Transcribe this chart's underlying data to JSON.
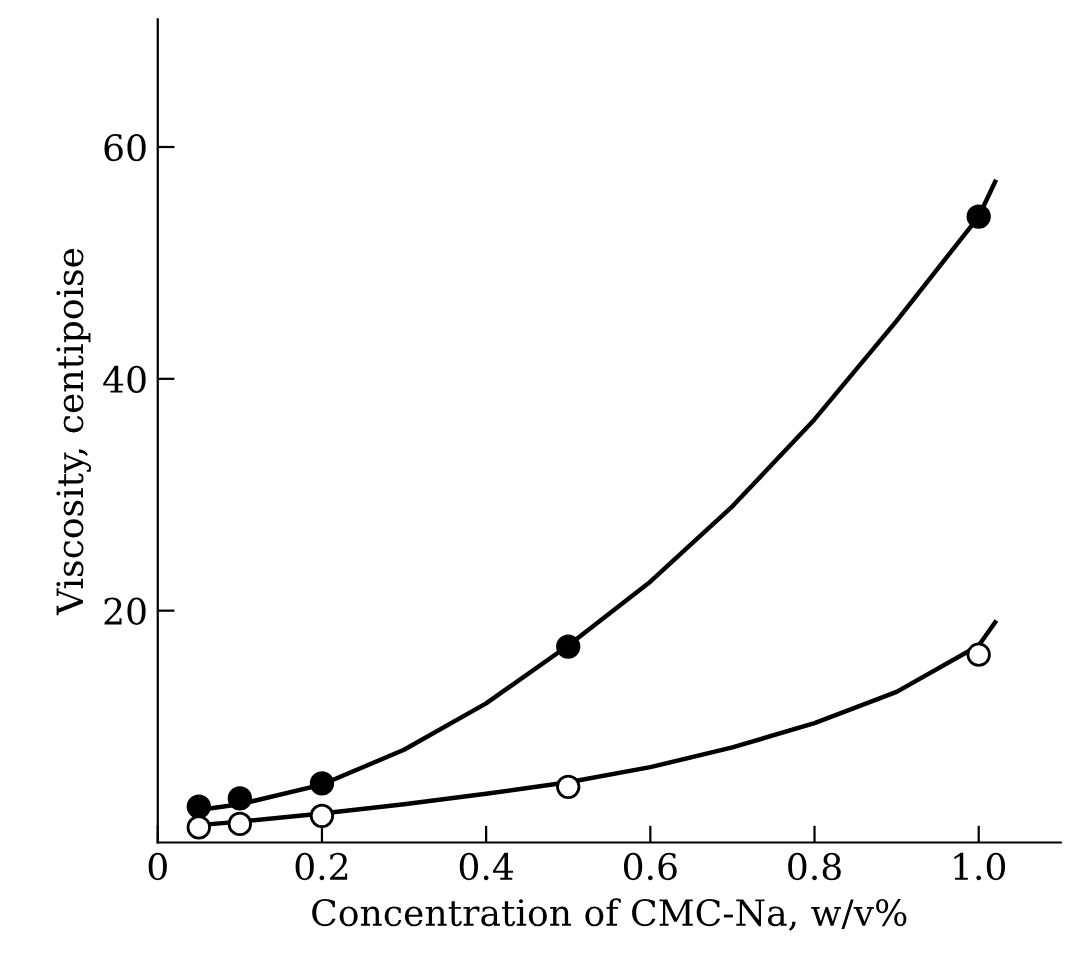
{
  "chart_data": {
    "type": "scatter",
    "xlabel": "Concentration of CMC-Na, w/v%",
    "ylabel": "Viscosity, centipoise",
    "xlim": [
      0,
      1.1
    ],
    "xticks": [
      0,
      {
        "value": 0.2,
        "label": "0.2"
      },
      {
        "value": 0.4,
        "label": "0.4"
      },
      {
        "value": 0.6,
        "label": "0.6"
      },
      {
        "value": 0.8,
        "label": "0.8"
      },
      {
        "value": 1.0,
        "label": "1.0"
      }
    ],
    "ylim": [
      0,
      71
    ],
    "yticks": [
      20,
      40,
      60
    ],
    "grid": false,
    "legend": false,
    "series": [
      {
        "marker": "circle",
        "color": "#000000",
        "x": [
          0.05,
          0.1,
          0.2,
          0.5,
          1.0
        ],
        "values": [
          3.1,
          3.8,
          5.1,
          16.9,
          54
        ]
      },
      {
        "marker": "circle",
        "color": "#ffffff",
        "x": [
          0.05,
          0.1,
          0.2,
          0.5,
          1.0
        ],
        "values": [
          1.3,
          1.6,
          2.3,
          4.8,
          16.2
        ]
      },
      {
        "type": "line",
        "color": "#000000",
        "line_style": "solid",
        "x": [
          0.05,
          0.1,
          0.2,
          0.3,
          0.4,
          0.5,
          0.6,
          0.7,
          0.8,
          0.9,
          1.0,
          1.02
        ],
        "values": [
          2.8,
          3.3,
          5,
          8,
          12,
          17,
          22.5,
          29,
          36.5,
          45,
          54,
          57
        ]
      },
      {
        "type": "line",
        "color": "#000000",
        "line_style": "solid",
        "x": [
          0.05,
          0.1,
          0.2,
          0.3,
          0.4,
          0.5,
          0.6,
          0.7,
          0.8,
          0.9,
          1.0,
          1.02
        ],
        "values": [
          1.5,
          1.8,
          2.5,
          3.3,
          4.2,
          5.2,
          6.5,
          8.2,
          10.3,
          13,
          17,
          19
        ]
      }
    ]
  }
}
